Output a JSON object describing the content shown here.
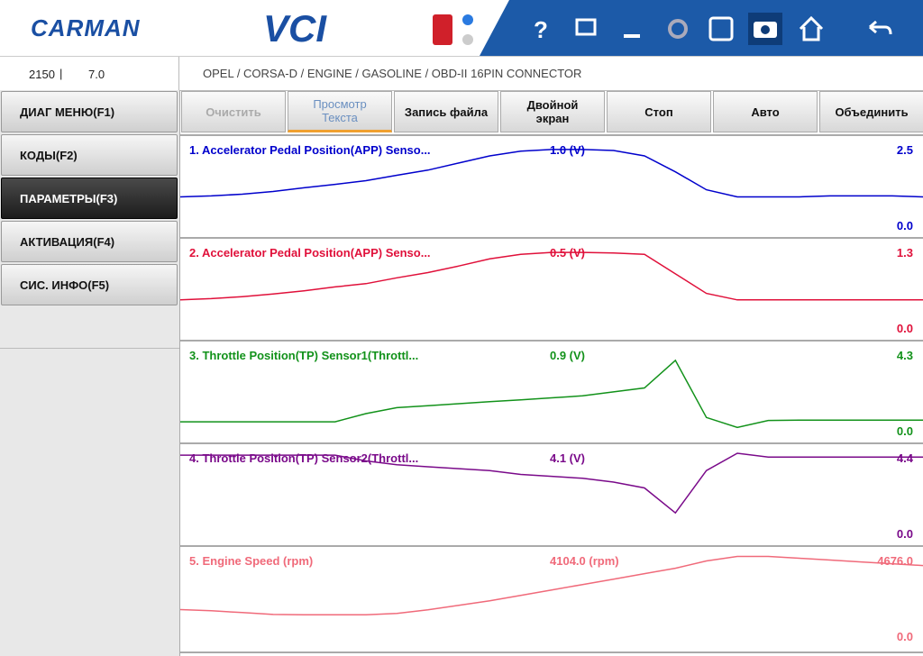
{
  "header": {
    "logo": "CARMAN",
    "product": "VCI",
    "help": "?"
  },
  "status": {
    "left": "2150",
    "right": "7.0",
    "path": "OPEL / CORSA-D / ENGINE / GASOLINE / OBD-II 16PIN CONNECTOR"
  },
  "menu": [
    {
      "label": "ДИАГ МЕНЮ(F1)",
      "selected": false
    },
    {
      "label": "КОДЫ(F2)",
      "selected": false
    },
    {
      "label": "ПАРАМЕТРЫ(F3)",
      "selected": true
    },
    {
      "label": "АКТИВАЦИЯ(F4)",
      "selected": false
    },
    {
      "label": "СИС. ИНФО(F5)",
      "selected": false
    }
  ],
  "toolbar": [
    {
      "label": "Очистить",
      "state": "disabled"
    },
    {
      "label": "Просмотр\nТекста",
      "state": "active"
    },
    {
      "label": "Запись файла",
      "state": "normal"
    },
    {
      "label": "Двойной\nэкран",
      "state": "normal"
    },
    {
      "label": "Стоп",
      "state": "normal"
    },
    {
      "label": "Авто",
      "state": "normal"
    },
    {
      "label": "Объединить",
      "state": "normal"
    }
  ],
  "panels": [
    {
      "name": "1. Accelerator Pedal Position(APP) Senso...",
      "value": "1.0 (V)",
      "color": "#0000cc",
      "max": 2.5,
      "min": {
        "value": 0,
        "label": "0.0"
      },
      "trace": [
        0.97,
        1.0,
        1.05,
        1.13,
        1.24,
        1.34,
        1.45,
        1.61,
        1.76,
        1.97,
        2.18,
        2.32,
        2.37,
        2.37,
        2.34,
        2.18,
        1.71,
        1.18,
        0.97,
        0.97,
        0.97,
        1.0,
        1.0,
        1.0,
        0.97
      ]
    },
    {
      "name": "2. Accelerator Pedal Position(APP) Senso...",
      "value": "0.5 (V)",
      "color": "#e0103a",
      "max": 1.3,
      "min": {
        "value": 0,
        "label": "0.0"
      },
      "trace": [
        0.5,
        0.52,
        0.55,
        0.59,
        0.64,
        0.7,
        0.75,
        0.84,
        0.92,
        1.02,
        1.13,
        1.2,
        1.23,
        1.23,
        1.22,
        1.2,
        0.9,
        0.6,
        0.5,
        0.5,
        0.5,
        0.5,
        0.5,
        0.5,
        0.5
      ]
    },
    {
      "name": "3. Throttle Position(TP) Sensor1(Throttl...",
      "value": "0.9 (V)",
      "color": "#12921a",
      "max": 4.3,
      "min": {
        "value": 0,
        "label": "0.0"
      },
      "trace": [
        0.68,
        0.68,
        0.68,
        0.68,
        0.68,
        0.68,
        1.1,
        1.4,
        1.5,
        1.6,
        1.7,
        1.8,
        1.9,
        2.0,
        2.2,
        2.4,
        3.8,
        0.9,
        0.4,
        0.75,
        0.77,
        0.77,
        0.77,
        0.77,
        0.77
      ]
    },
    {
      "name": "4. Throttle Position(TP) Sensor2(Throttl...",
      "value": "4.1 (V)",
      "color": "#7a0a8a",
      "max": 4.4,
      "min": {
        "value": 0,
        "label": "0.0"
      },
      "trace": [
        4.3,
        4.3,
        4.3,
        4.3,
        4.3,
        4.3,
        4.0,
        3.8,
        3.7,
        3.6,
        3.5,
        3.3,
        3.2,
        3.1,
        2.9,
        2.6,
        1.3,
        3.5,
        4.4,
        4.2,
        4.2,
        4.2,
        4.2,
        4.2,
        4.2
      ]
    },
    {
      "name": "5. Engine Speed (rpm)",
      "value": "4104.0 (rpm)",
      "color": "#f06a7a",
      "max": {
        "value": 4676,
        "label": "4676.0"
      },
      "min": {
        "value": 0,
        "label": "0.0"
      },
      "trace": [
        1718,
        1650,
        1550,
        1450,
        1431,
        1431,
        1431,
        1500,
        1700,
        1950,
        2200,
        2500,
        2800,
        3100,
        3400,
        3700,
        4000,
        4400,
        4650,
        4650,
        4550,
        4450,
        4350,
        4250,
        4150
      ]
    }
  ]
}
